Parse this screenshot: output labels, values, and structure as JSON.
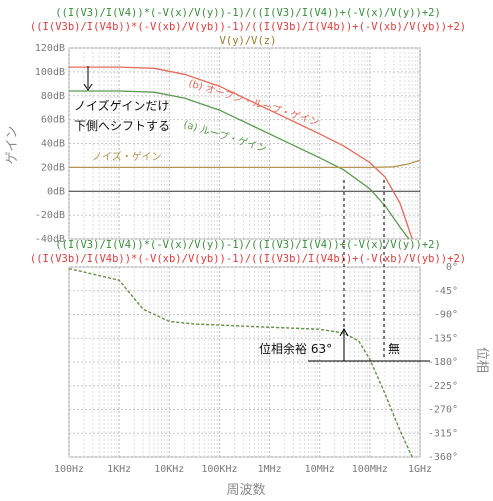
{
  "header": {
    "top_lines": [
      {
        "text": "((I(V3)/I(V4))*(-V(x)/V(y))-1)/((I(V3)/I(V4))+(-V(x)/V(y))+2)",
        "color": "#3c8c3c"
      },
      {
        "text": "((I(V3b)/I(V4b))*(-V(xb)/V(yb))-1)/((I(V3b)/I(V4b))+(-V(xb)/V(yb))+2)",
        "color": "#e03c3c"
      },
      {
        "text": "V(y)/V(z)",
        "color": "#a07828"
      }
    ],
    "bottom_lines": [
      {
        "text": "((I(V3)/I(V4))*(-V(x)/V(y))-1)/((I(V3)/I(V4))+(-V(x)/V(y))+2)",
        "color": "#3c8c3c"
      },
      {
        "text": "((I(V3b)/I(V4b))*(-V(xb)/V(yb))-1)/((I(V3b)/I(V4b))+(-V(xb)/V(yb))+2)",
        "color": "#e03c3c"
      }
    ]
  },
  "chart_data": [
    {
      "type": "line",
      "panel": "gain",
      "ylabel": "ゲイン",
      "y_ticks": [
        "120dB",
        "100dB",
        "80dB",
        "60dB",
        "40dB",
        "20dB",
        "0dB",
        "-20dB",
        "-40dB"
      ],
      "ylim": [
        -40,
        120
      ],
      "x_scale": "log",
      "xlim_hz": [
        100,
        1000000000
      ],
      "series": [
        {
          "name": "(b) オープン・ループ・ゲイン",
          "color": "#e56a5a",
          "points": [
            [
              100,
              104
            ],
            [
              1000,
              104
            ],
            [
              5000,
              103
            ],
            [
              20000,
              98
            ],
            [
              100000,
              88
            ],
            [
              1000000,
              68
            ],
            [
              10000000,
              48
            ],
            [
              30000000,
              38
            ],
            [
              100000000,
              24
            ],
            [
              200000000,
              12
            ],
            [
              400000000,
              -10
            ],
            [
              700000000,
              -40
            ]
          ]
        },
        {
          "name": "(a) ループ・ゲイン",
          "color": "#5a9a4e",
          "points": [
            [
              100,
              84
            ],
            [
              1000,
              84
            ],
            [
              5000,
              83
            ],
            [
              20000,
              78
            ],
            [
              100000,
              68
            ],
            [
              1000000,
              48
            ],
            [
              10000000,
              28
            ],
            [
              30000000,
              18
            ],
            [
              100000000,
              2
            ],
            [
              200000000,
              -12
            ],
            [
              400000000,
              -30
            ],
            [
              600000000,
              -40
            ]
          ]
        },
        {
          "name": "ノイズ・ゲイン",
          "color": "#b49650",
          "points": [
            [
              100,
              20
            ],
            [
              10000000,
              20
            ],
            [
              100000000,
              20
            ],
            [
              300000000,
              20.5
            ],
            [
              600000000,
              23
            ],
            [
              1000000000,
              26
            ]
          ]
        }
      ],
      "annotations": {
        "shift_note_line1": "ノイズゲインだけ",
        "shift_note_line2": "下側へシフトする"
      }
    },
    {
      "type": "line",
      "panel": "phase",
      "ylabel": "位相",
      "y_ticks": [
        "0°",
        "-45°",
        "-90°",
        "-135°",
        "-180°",
        "-225°",
        "-270°",
        "-315°",
        "-360°"
      ],
      "ylim": [
        -360,
        0
      ],
      "x_scale": "log",
      "xlabel": "周波数",
      "x_ticks": [
        "100Hz",
        "1KHz",
        "10KHz",
        "100KHz",
        "1MHz",
        "10MHz",
        "100MHz",
        "1GHz"
      ],
      "series": [
        {
          "color": "#e56a5a",
          "dashed": true,
          "points": [
            [
              100,
              -3
            ],
            [
              1000,
              -25
            ],
            [
              3000,
              -80
            ],
            [
              10000,
              -103
            ],
            [
              30000,
              -108
            ],
            [
              100000,
              -110
            ],
            [
              1000000,
              -114
            ],
            [
              10000000,
              -118
            ],
            [
              30000000,
              -125
            ],
            [
              60000000,
              -140
            ],
            [
              100000000,
              -175
            ],
            [
              200000000,
              -240
            ],
            [
              400000000,
              -310
            ],
            [
              700000000,
              -360
            ]
          ]
        },
        {
          "color": "#5a9a4e",
          "dashed": true,
          "points": [
            [
              100,
              -3
            ],
            [
              1000,
              -25
            ],
            [
              3000,
              -80
            ],
            [
              10000,
              -103
            ],
            [
              30000,
              -108
            ],
            [
              100000,
              -110
            ],
            [
              1000000,
              -114
            ],
            [
              10000000,
              -118
            ],
            [
              30000000,
              -125
            ],
            [
              60000000,
              -140
            ],
            [
              100000000,
              -175
            ],
            [
              200000000,
              -240
            ],
            [
              400000000,
              -310
            ],
            [
              700000000,
              -360
            ]
          ]
        }
      ],
      "annotations": {
        "margin_label": "位相余裕 63°",
        "right_label": "無"
      }
    }
  ]
}
